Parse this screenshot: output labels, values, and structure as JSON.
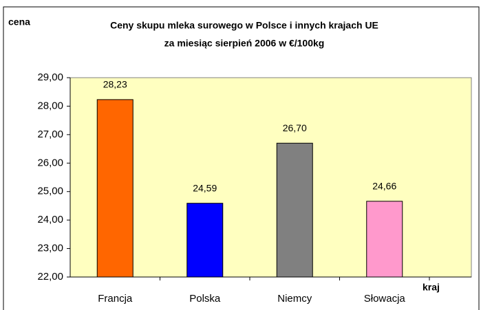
{
  "chart_data": {
    "type": "bar",
    "title": [
      "Ceny skupu mleka surowego w Polsce i innych krajach UE",
      "za miesiąc sierpień 2006 w €/100kg"
    ],
    "y_label": "cena",
    "x_label": "kraj",
    "categories": [
      "Francja",
      "Polska",
      "Niemcy",
      "Słowacja"
    ],
    "values": [
      28.23,
      24.59,
      26.7,
      24.66
    ],
    "value_labels": [
      "28,23",
      "24,59",
      "26,70",
      "24,66"
    ],
    "colors": [
      "#ff6600",
      "#0000ff",
      "#808080",
      "#ff99cc"
    ],
    "ylim": [
      22,
      29
    ],
    "yticks": [
      {
        "value": 22,
        "label": "22,00"
      },
      {
        "value": 23,
        "label": "23,00"
      },
      {
        "value": 24,
        "label": "24,00"
      },
      {
        "value": 25,
        "label": "25,00"
      },
      {
        "value": 26,
        "label": "26,00"
      },
      {
        "value": 27,
        "label": "27,00"
      },
      {
        "value": 28,
        "label": "28,00"
      },
      {
        "value": 29,
        "label": "29,00"
      }
    ],
    "grid": false
  }
}
